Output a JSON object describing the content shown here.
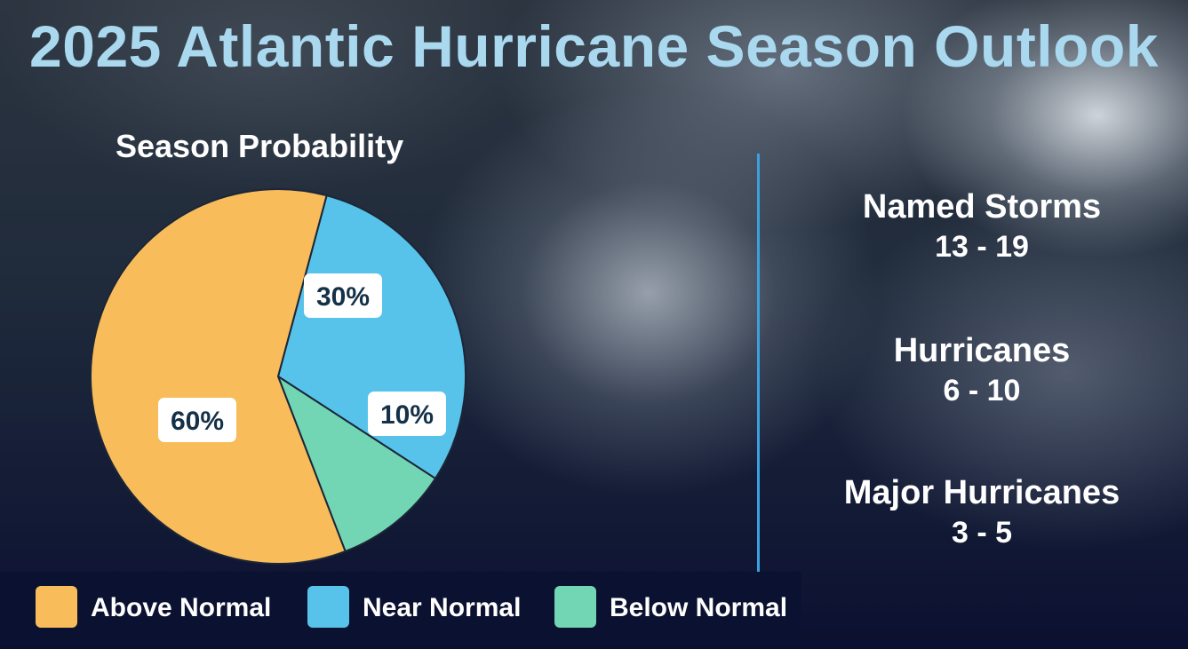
{
  "title": "2025 Atlantic Hurricane Season Outlook",
  "chart_data": {
    "type": "pie",
    "title": "Season Probability",
    "slices": [
      {
        "name": "Near Normal",
        "value": 30,
        "label": "30%",
        "color": "#57c3ea"
      },
      {
        "name": "Below Normal",
        "value": 10,
        "label": "10%",
        "color": "#72d6b4"
      },
      {
        "name": "Above Normal",
        "value": 60,
        "label": "60%",
        "color": "#f8bc5a"
      }
    ],
    "start_angle_deg": -75,
    "legend_placement": "bottom"
  },
  "legend": [
    {
      "label": "Above Normal",
      "color": "#f8bc5a"
    },
    {
      "label": "Near Normal",
      "color": "#57c3ea"
    },
    {
      "label": "Below Normal",
      "color": "#72d6b4"
    }
  ],
  "stats": [
    {
      "label": "Named Storms",
      "value": "13 - 19"
    },
    {
      "label": "Hurricanes",
      "value": "6 - 10"
    },
    {
      "label": "Major Hurricanes",
      "value": "3 - 5"
    }
  ]
}
